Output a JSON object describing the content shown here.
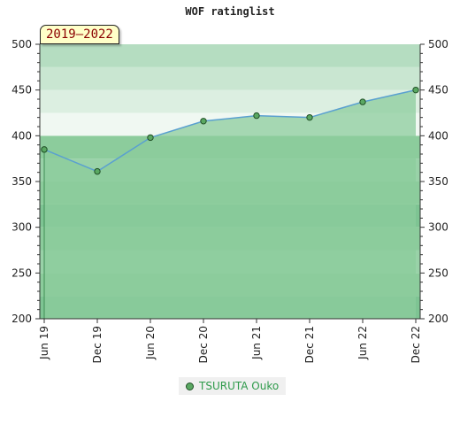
{
  "chart_data": {
    "type": "area",
    "title": "WOF ratinglist",
    "period_label": "2019–2022",
    "categories": [
      "Jun 19",
      "Dec 19",
      "Jun 20",
      "Dec 20",
      "Jun 21",
      "Dec 21",
      "Jun 22",
      "Dec 22"
    ],
    "series": [
      {
        "name": "TSURUTA Ouko",
        "values": [
          385,
          361,
          398,
          416,
          422,
          420,
          437,
          450
        ]
      }
    ],
    "ylim": [
      200,
      500
    ],
    "yticks": [
      200,
      250,
      300,
      350,
      400,
      450,
      500
    ],
    "y_axis_both_sides": true,
    "legend_position": "bottom-center",
    "colors": {
      "line": "#5aa0d0",
      "area": "#8ccc9c",
      "marker": "#5aa862",
      "legend_text": "#2e9a4a"
    }
  }
}
